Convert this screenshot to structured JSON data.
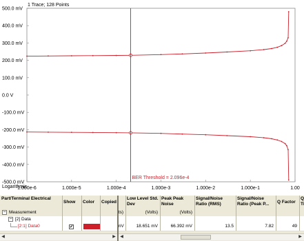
{
  "plot": {
    "trace_info": "1 Trace; 128 Points",
    "x_scale_label": "Logarithmic",
    "threshold_label": "BER Threshold = 2.096e-4",
    "y_ticks": [
      "500.0 mV",
      "400.0 mV",
      "300.0 mV",
      "200.0 mV",
      "100.0 mV",
      "0.0 V",
      "-100.0 mV",
      "-200.0 mV",
      "-300.0 mV",
      "-400.0 mV",
      "-500.0 mV"
    ],
    "x_ticks": [
      "1.000e-6",
      "1.000e-5",
      "1.000e-4",
      "1.000e-3",
      "1.000e-2",
      "1.000e-1",
      "1.00"
    ],
    "trace_color": "#cc1f2a"
  },
  "chart_data": {
    "type": "line",
    "title": "",
    "xlabel": "",
    "ylabel": "",
    "x_scale": "log",
    "xlim": [
      1e-06,
      1
    ],
    "ylim": [
      -500,
      500
    ],
    "units": "mV",
    "threshold_x": 0.0002096,
    "series": [
      {
        "x": [
          1e-06,
          3e-06,
          1e-05,
          3e-05,
          0.0001,
          0.0002096,
          0.001,
          0.003,
          0.01,
          0.03,
          0.1,
          0.2,
          0.3,
          0.4,
          0.5,
          0.6,
          0.65,
          0.7,
          0.72
        ],
        "values": [
          224,
          225,
          226,
          227,
          228,
          229,
          233,
          237,
          242,
          248,
          255,
          262,
          268,
          275,
          285,
          298,
          310,
          330,
          480
        ]
      },
      {
        "x": [
          1e-06,
          3e-06,
          1e-05,
          3e-05,
          0.0001,
          0.0002096,
          0.001,
          0.003,
          0.01,
          0.03,
          0.1,
          0.2,
          0.3,
          0.4,
          0.5,
          0.6,
          0.65,
          0.7,
          0.72
        ],
        "values": [
          -213,
          -214,
          -215,
          -216,
          -217,
          -218,
          -221,
          -225,
          -229,
          -234,
          -240,
          -246,
          -252,
          -259,
          -268,
          -280,
          -292,
          -315,
          -490
        ]
      }
    ]
  },
  "grid": {
    "headers": {
      "part_terminal": "Part/Terminal Electrical",
      "show": "Show",
      "color": "Color",
      "copied": "Copied",
      "low_level": "Low Level Std. Dev",
      "peak_peak": "Peak Peak Noise",
      "sn_rms": "Signal/Noise Ratio (RMS)",
      "sn_peak": "Signal/Noise Ratio (Peak P...",
      "q_factor": "Q Factor",
      "last": "Q Ti"
    },
    "units_row": {
      "left_partial": "ts)",
      "low_level": "(Volts)",
      "peak_peak": "(Volts)"
    },
    "tree": {
      "measurement": "Measurement",
      "data_group": "[2] Data",
      "data_item": "[2:1] Data0",
      "expand_minus": "−"
    },
    "data_row": {
      "show_checked": "✔",
      "left_partial": "mV",
      "low_level": "18.651 mV",
      "peak_peak": "66.392 mV",
      "sn_rms": "13.5",
      "sn_peak": "7.82",
      "q_factor": "49"
    },
    "scroll": {
      "left_arrow": "◀",
      "right_arrow": "▶"
    }
  }
}
